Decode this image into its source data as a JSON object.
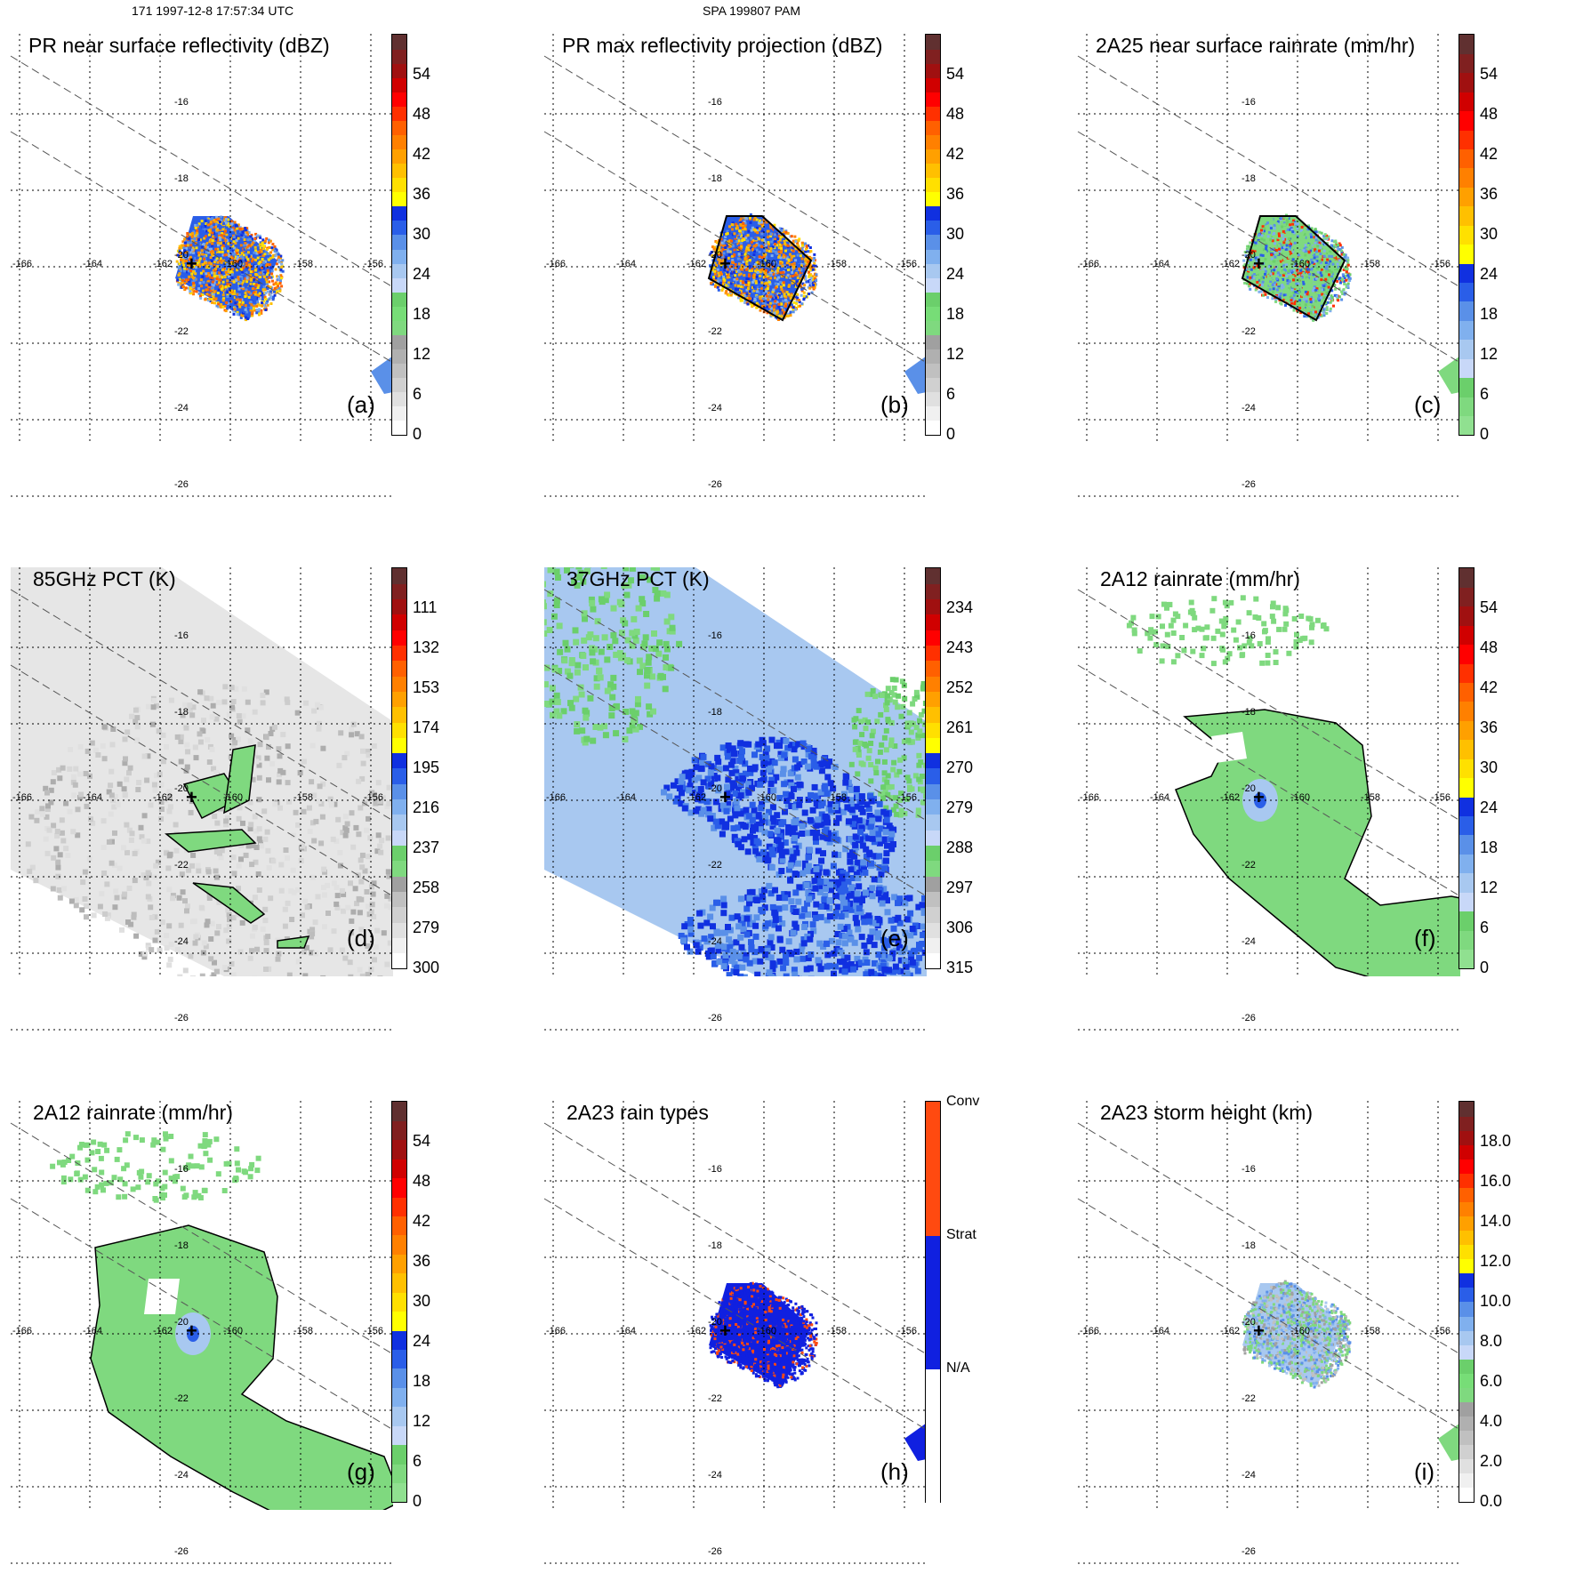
{
  "header": {
    "left": "171 1997-12-8 17:57:34 UTC",
    "center": "SPA 199807 PAM"
  },
  "map": {
    "lon_labels": [
      "-166",
      "-164",
      "-162",
      "-160",
      "-158",
      "-156"
    ],
    "lat_labels": [
      "-16",
      "-18",
      "-20",
      "-22",
      "-24",
      "-26"
    ]
  },
  "colors": {
    "ramp_a": [
      "#ffffff",
      "#f0f0f0",
      "#e0e0e0",
      "#d0d0d0",
      "#c0c0c0",
      "#b0b0b0",
      "#a0a0a0",
      "#7fd97f",
      "#77dd77",
      "#6bcf6b",
      "#c8d8f8",
      "#a8c8f0",
      "#80b0ee",
      "#5a90e8",
      "#2a5ee8",
      "#1030e0",
      "#ffff00",
      "#ffe000",
      "#ffc000",
      "#ffa000",
      "#ff8000",
      "#ff6000",
      "#ff3000",
      "#ff0000",
      "#d00000",
      "#a01010",
      "#802020",
      "#603030"
    ],
    "ramp_c": [
      "#90e090",
      "#7fd97f",
      "#6bcf6b",
      "#c8d8f8",
      "#a8c8f0",
      "#80b0ee",
      "#5a90e8",
      "#2a5ee8",
      "#1030e0",
      "#ffff00",
      "#ffe000",
      "#ffc000",
      "#ffa000",
      "#ff8000",
      "#ff6000",
      "#ff3000",
      "#ff0000",
      "#d00000",
      "#a01010",
      "#802020",
      "#603030"
    ],
    "ramp_d": [
      "#ffffff",
      "#f0f0f0",
      "#e0e0e0",
      "#d0d0d0",
      "#c0c0c0",
      "#a0a0a0",
      "#7fd97f",
      "#6bcf6b",
      "#c8d8f8",
      "#a8c8f0",
      "#80b0ee",
      "#5a90e8",
      "#2a5ee8",
      "#1030e0",
      "#ffff00",
      "#ffe000",
      "#ffc000",
      "#ffa000",
      "#ff8000",
      "#ff6000",
      "#ff3000",
      "#ff0000",
      "#d00000",
      "#a01010",
      "#802020",
      "#603030"
    ],
    "ramp_h": [
      "#ffffff",
      "#1020e0",
      "#ff4a10"
    ],
    "rain_green": "#7fd97f",
    "grid": "#000000",
    "swath": "#555555"
  },
  "panels": [
    {
      "id": "a",
      "title": "PR near surface reflectivity (dBZ)",
      "label": "(a)",
      "colorbar": {
        "ramp": "ramp_a",
        "ticks": [
          "54",
          "48",
          "42",
          "36",
          "30",
          "24",
          "18",
          "12",
          "6",
          "0"
        ]
      }
    },
    {
      "id": "b",
      "title": "PR max reflectivity projection (dBZ)",
      "label": "(b)",
      "colorbar": {
        "ramp": "ramp_a",
        "ticks": [
          "54",
          "48",
          "42",
          "36",
          "30",
          "24",
          "18",
          "12",
          "6",
          "0"
        ]
      }
    },
    {
      "id": "c",
      "title": "2A25 near surface rainrate (mm/hr)",
      "label": "(c)",
      "colorbar": {
        "ramp": "ramp_c",
        "ticks": [
          "54",
          "48",
          "42",
          "36",
          "30",
          "24",
          "18",
          "12",
          "6",
          "0"
        ]
      }
    },
    {
      "id": "d",
      "title": "85GHz PCT (K)",
      "label": "(d)",
      "colorbar": {
        "ramp": "ramp_d",
        "ticks": [
          "111",
          "132",
          "153",
          "174",
          "195",
          "216",
          "237",
          "258",
          "279",
          "300"
        ]
      }
    },
    {
      "id": "e",
      "title": "37GHz PCT (K)",
      "label": "(e)",
      "colorbar": {
        "ramp": "ramp_d",
        "ticks": [
          "234",
          "243",
          "252",
          "261",
          "270",
          "279",
          "288",
          "297",
          "306",
          "315"
        ]
      }
    },
    {
      "id": "f",
      "title": "2A12 rainrate (mm/hr)",
      "label": "(f)",
      "colorbar": {
        "ramp": "ramp_c",
        "ticks": [
          "54",
          "48",
          "42",
          "36",
          "30",
          "24",
          "18",
          "12",
          "6",
          "0"
        ]
      }
    },
    {
      "id": "g",
      "title": "2A12 rainrate (mm/hr)",
      "label": "(g)",
      "colorbar": {
        "ramp": "ramp_c",
        "ticks": [
          "54",
          "48",
          "42",
          "36",
          "30",
          "24",
          "18",
          "12",
          "6",
          "0"
        ]
      }
    },
    {
      "id": "h",
      "title": "2A23 rain types",
      "label": "(h)",
      "colorbar": {
        "ramp": "ramp_h",
        "ticks": [
          "Conv",
          "Strat",
          "N/A"
        ]
      }
    },
    {
      "id": "i",
      "title": "2A23 storm height (km)",
      "label": "(i)",
      "colorbar": {
        "ramp": "ramp_a",
        "ticks": [
          "18.0",
          "16.0",
          "14.0",
          "12.0",
          "10.0",
          "8.0",
          "6.0",
          "4.0",
          "2.0",
          "0.0"
        ]
      }
    }
  ]
}
